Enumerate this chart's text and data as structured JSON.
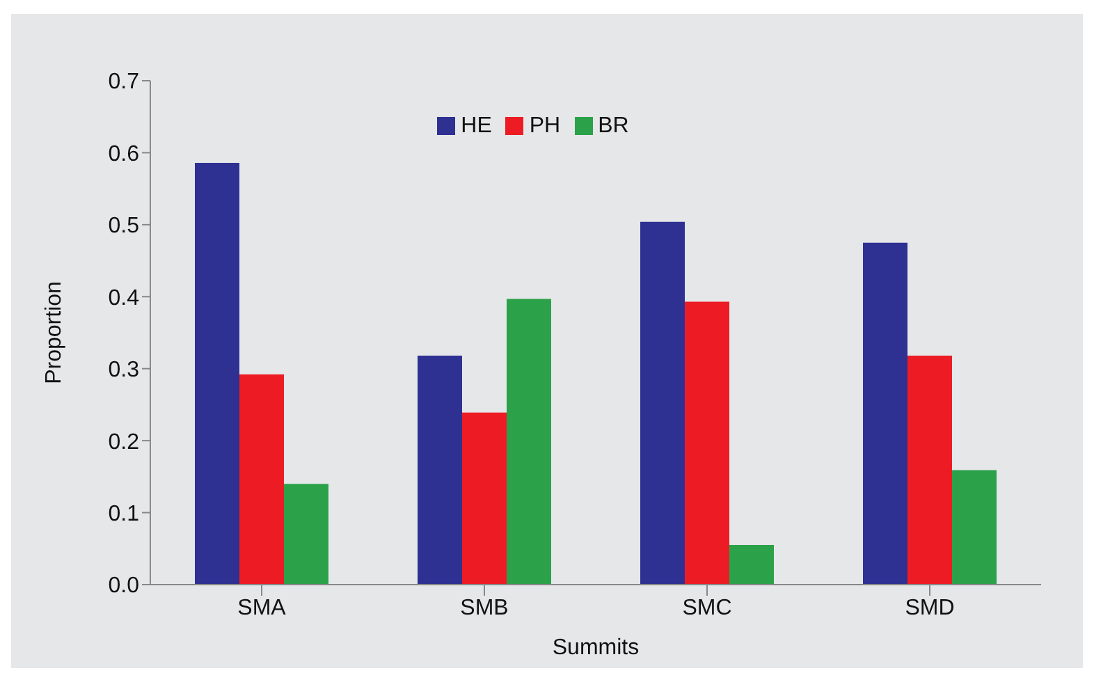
{
  "chart_data": {
    "type": "bar",
    "xlabel": "Summits",
    "ylabel": "Proportion",
    "categories": [
      "SMA",
      "SMB",
      "SMC",
      "SMD"
    ],
    "series": [
      {
        "name": "HE",
        "color": "#2e3192",
        "values": [
          0.586,
          0.318,
          0.504,
          0.475
        ]
      },
      {
        "name": "PH",
        "color": "#ed1c24",
        "values": [
          0.292,
          0.239,
          0.393,
          0.318
        ]
      },
      {
        "name": "BR",
        "color": "#2ba24a",
        "values": [
          0.14,
          0.397,
          0.055,
          0.159
        ]
      }
    ],
    "ylim": [
      0,
      0.7
    ],
    "yticks": [
      {
        "value": 0,
        "label": "0.0"
      },
      0.1,
      0.2,
      0.3,
      0.4,
      0.5,
      0.6,
      0.7
    ],
    "grid": false,
    "legend": "top"
  }
}
